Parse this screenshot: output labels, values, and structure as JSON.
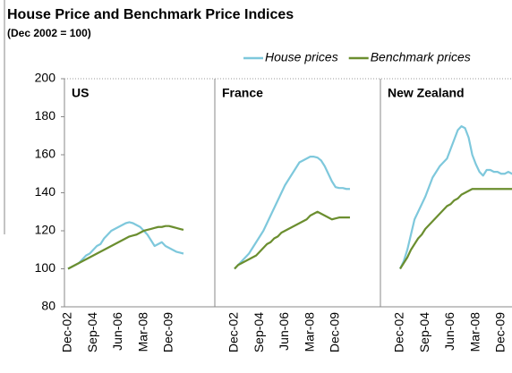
{
  "chart_data": {
    "type": "line",
    "title": "House Price and Benchmark Price Indices",
    "subtitle": "(Dec 2002 = 100)",
    "legend_position": "top-right",
    "ylim": [
      80,
      200
    ],
    "yticks": [
      80,
      100,
      120,
      140,
      160,
      180,
      200
    ],
    "categories": [
      "Dec-02",
      null,
      null,
      null,
      null,
      null,
      null,
      "Sep-04",
      null,
      null,
      null,
      null,
      null,
      null,
      "Jun-06",
      null,
      null,
      null,
      null,
      null,
      null,
      "Mar-08",
      null,
      null,
      null,
      null,
      null,
      null,
      "Dec-09",
      null,
      null,
      null,
      null
    ],
    "series": [
      {
        "name": "House prices",
        "color": "#7ec8dc"
      },
      {
        "name": "Benchmark prices",
        "color": "#6b8e2f"
      }
    ],
    "panels": [
      {
        "title": "US",
        "series": [
          {
            "values": [
              100,
              101,
              102,
              103,
              105,
              107,
              108,
              110,
              112,
              113,
              116,
              118,
              120,
              121,
              122,
              123,
              124,
              124.5,
              124,
              123,
              122,
              120,
              118,
              115,
              112,
              113,
              114,
              112,
              111,
              110,
              109,
              108.5,
              108
            ]
          },
          {
            "values": [
              100,
              101,
              102,
              103,
              104,
              105,
              106,
              107,
              108,
              109,
              110,
              111,
              112,
              113,
              114,
              115,
              116,
              117,
              117.5,
              118,
              119,
              120,
              120.5,
              121,
              121.5,
              122,
              122,
              122.5,
              122.5,
              122,
              121.5,
              121,
              120.5
            ]
          }
        ]
      },
      {
        "title": "France",
        "series": [
          {
            "values": [
              100,
              102,
              104,
              106,
              108,
              111,
              114,
              117,
              120,
              124,
              128,
              132,
              136,
              140,
              144,
              147,
              150,
              153,
              156,
              157,
              158,
              159,
              159,
              158.5,
              157,
              154,
              150,
              146,
              143,
              142.5,
              142.5,
              142,
              142
            ]
          },
          {
            "values": [
              100,
              102,
              103,
              104,
              105,
              106,
              107,
              109,
              111,
              113,
              114,
              116,
              117,
              119,
              120,
              121,
              122,
              123,
              124,
              125,
              126,
              128,
              129,
              130,
              129,
              128,
              127,
              126,
              126.5,
              127,
              127,
              127,
              127
            ]
          }
        ]
      },
      {
        "title": "New Zealand",
        "series": [
          {
            "values": [
              100,
              104,
              110,
              118,
              126,
              130,
              134,
              138,
              143,
              148,
              151,
              154,
              156,
              158,
              163,
              168,
              173,
              175,
              174,
              169,
              160,
              155,
              151,
              149,
              152,
              152,
              151,
              151,
              150,
              150,
              151,
              150,
              150
            ]
          },
          {
            "values": [
              100,
              103,
              106,
              110,
              113,
              116,
              118,
              121,
              123,
              125,
              127,
              129,
              131,
              133,
              134,
              136,
              137,
              139,
              140,
              141,
              142,
              142,
              142,
              142,
              142,
              142,
              142,
              142,
              142,
              142,
              142,
              142,
              142
            ]
          }
        ]
      }
    ]
  }
}
